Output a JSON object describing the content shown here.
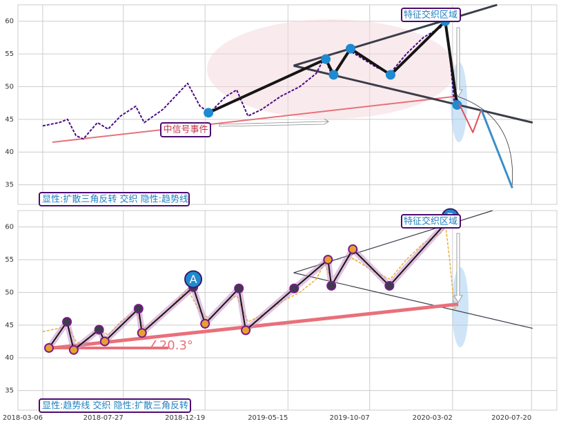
{
  "chart_data": [
    {
      "type": "line",
      "annotations": {
        "zone": "特征交织区域",
        "event": "中信号事件",
        "pattern": "显性:扩散三角反转 交织 隐性:趋势线"
      },
      "xlim": [
        "2018-01-21",
        "2020-09-03"
      ],
      "ylim": [
        32,
        62.5
      ],
      "xticks": [
        "2018-03-06",
        "2018-07-27",
        "2018-12-19",
        "2019-05-15",
        "2019-10-07",
        "2020-03-02",
        "2020-07-20"
      ],
      "yticks": [
        35,
        40,
        45,
        50,
        55,
        60
      ],
      "grid": true,
      "series": [
        {
          "color": "#e8707a",
          "width": 2,
          "x": [
            "2018-03-23",
            "2020-03-07"
          ],
          "values": [
            41.5,
            48.5
          ]
        },
        {
          "color": "#3a3d4a",
          "width": 3,
          "x": [
            "2019-05-25",
            "2020-05-20"
          ],
          "values": [
            53.2,
            62.5
          ]
        },
        {
          "color": "#3a3d4a",
          "width": 3,
          "x": [
            "2019-05-25",
            "2020-07-22"
          ],
          "values": [
            53.2,
            44.5
          ]
        },
        {
          "color": "#4b0a82",
          "width": 2,
          "dash": "4 2",
          "x": [
            "2018-03-06",
            "2018-04-04",
            "2018-04-19",
            "2018-05-04",
            "2018-05-17",
            "2018-06-11",
            "2018-06-30",
            "2018-07-22",
            "2018-08-18",
            "2018-09-02",
            "2018-10-05",
            "2018-11-18",
            "2018-12-10",
            "2018-12-27",
            "2019-01-25",
            "2019-02-13",
            "2019-03-05",
            "2019-03-29",
            "2019-05-02",
            "2019-06-05",
            "2019-07-04",
            "2019-07-19",
            "2019-08-02",
            "2019-09-01",
            "2019-09-20",
            "2019-10-18",
            "2019-11-12",
            "2019-12-11",
            "2020-01-10",
            "2020-02-09",
            "2020-02-19",
            "2020-02-27",
            "2020-03-05",
            "2020-03-12"
          ],
          "values": [
            44,
            44.5,
            45,
            42.5,
            42,
            44.5,
            43.5,
            45.5,
            47,
            44.5,
            46.5,
            50.5,
            47,
            46,
            48.5,
            49.5,
            45.5,
            46.5,
            48.5,
            50,
            52,
            54.5,
            51.5,
            55.5,
            54.5,
            53,
            52,
            55,
            57.5,
            59,
            60,
            54,
            47.5,
            48
          ]
        },
        {
          "color": "#151515",
          "width": 4,
          "markers": "#1e8ad0",
          "x": [
            "2018-12-25",
            "2019-07-21",
            "2019-08-04",
            "2019-09-03",
            "2019-11-13",
            "2020-02-18",
            "2020-03-10"
          ],
          "values": [
            46,
            54.2,
            51.8,
            55.8,
            51.8,
            60,
            47.2
          ]
        },
        {
          "color": "#e0505a",
          "width": 2,
          "x": [
            "2020-03-13",
            "2020-04-07",
            "2020-04-22"
          ],
          "values": [
            47.5,
            43,
            46.5
          ]
        },
        {
          "color": "#3b8fc8",
          "width": 3,
          "x": [
            "2020-04-22",
            "2020-06-16"
          ],
          "values": [
            46.5,
            34.5
          ]
        }
      ]
    },
    {
      "type": "line",
      "annotations": {
        "zone": "特征交织区域",
        "pattern": "显性:趋势线 交织 隐性:扩散三角反转"
      },
      "labels": [
        {
          "text": "A",
          "x": "2018-11-28",
          "y": 52
        },
        {
          "text": "B",
          "x": "2020-02-27",
          "y": 61.5
        },
        {
          "text": "∠20.3°",
          "x": "2018-09-09",
          "y": 41.8
        }
      ],
      "xlim": [
        "2018-01-21",
        "2020-09-03"
      ],
      "ylim": [
        32,
        62.5
      ],
      "xticks": [
        "2018-03-06",
        "2018-07-27",
        "2018-12-19",
        "2019-05-15",
        "2019-10-07",
        "2020-03-02",
        "2020-07-20"
      ],
      "yticks": [
        35,
        40,
        45,
        50,
        55,
        60
      ],
      "grid": true,
      "series": [
        {
          "color": "#3a3d4a",
          "width": 1.2,
          "x": [
            "2019-05-25",
            "2020-05-12"
          ],
          "values": [
            53,
            62.5
          ]
        },
        {
          "color": "#3a3d4a",
          "width": 1.2,
          "x": [
            "2019-05-25",
            "2020-07-22"
          ],
          "values": [
            53,
            44.5
          ]
        },
        {
          "color": "#e8b03a",
          "width": 1.5,
          "dash": "4 2",
          "x": [
            "2018-03-06",
            "2018-04-04",
            "2018-04-19",
            "2018-05-04",
            "2018-05-17",
            "2018-06-11",
            "2018-06-30",
            "2018-07-22",
            "2018-08-18",
            "2018-09-02",
            "2018-10-05",
            "2018-11-18",
            "2018-12-10",
            "2018-12-27",
            "2019-01-25",
            "2019-02-13",
            "2019-03-05",
            "2019-03-29",
            "2019-05-02",
            "2019-06-05",
            "2019-07-04",
            "2019-07-19",
            "2019-08-02",
            "2019-09-01",
            "2019-09-20",
            "2019-10-18",
            "2019-11-12",
            "2019-12-11",
            "2020-01-10",
            "2020-02-09",
            "2020-02-19",
            "2020-02-27",
            "2020-03-05",
            "2020-03-12"
          ],
          "values": [
            44,
            44.5,
            45,
            42.5,
            42,
            44.5,
            43.5,
            45.5,
            47,
            44.5,
            46.5,
            50.5,
            47,
            46,
            48.5,
            49.5,
            45.5,
            46.5,
            48.5,
            50,
            52,
            54.5,
            51.5,
            55.5,
            54.5,
            53,
            52,
            55,
            57.5,
            59,
            60,
            54,
            47.5,
            48
          ]
        },
        {
          "color": "#e8707a",
          "width": 5,
          "x": [
            "2018-03-23",
            "2020-03-12"
          ],
          "values": [
            41.5,
            48.2
          ]
        },
        {
          "color": "#e8707a",
          "width": 4,
          "x": [
            "2018-03-23",
            "2018-10-15"
          ],
          "values": [
            41.5,
            41.5
          ]
        },
        {
          "color": "#151515",
          "width": 2,
          "markers": "#7a1a8a",
          "x": [
            "2018-03-17",
            "2018-04-18",
            "2018-04-30",
            "2018-06-14",
            "2018-06-24",
            "2018-08-23",
            "2018-08-29",
            "2018-11-28",
            "2018-12-19",
            "2019-02-17",
            "2019-03-01",
            "2019-05-26",
            "2019-07-25",
            "2019-07-31",
            "2019-09-07",
            "2019-11-11",
            "2020-02-18"
          ],
          "values": [
            41.5,
            45.5,
            41.2,
            44.3,
            42.5,
            47.5,
            43.8,
            50.8,
            45.2,
            50.6,
            44.2,
            50.6,
            55,
            51,
            56.6,
            51,
            60.5
          ]
        }
      ]
    }
  ]
}
